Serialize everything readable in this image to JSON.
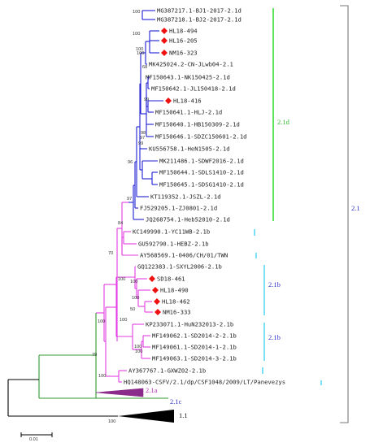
{
  "colors": {
    "clade_2_1d": "#1f1fd6",
    "clade_2_1b": "#e23ee2",
    "clade_2_1c": "#2f9a2f",
    "backbone": "#000000",
    "outgroup_2_1a": "#8a2a8a",
    "marker": "#ee1111",
    "bar_2_1d": "#33dd33",
    "bar_2_1b": "#22ccee",
    "bar_2_1": "#777777",
    "label_2_1d": "#33bb33",
    "label_blue": "#3333cc",
    "label_2_1a": "#bb33bb"
  },
  "marker_shape": "red-diamond",
  "taxa": [
    {
      "label": "MG387217.1-BJ1-2017-2.1d",
      "marked": false
    },
    {
      "label": "MG387218.1-BJ2-2017-2.1d",
      "marked": false
    },
    {
      "label": "HL18-494",
      "marked": true
    },
    {
      "label": "HL16-205",
      "marked": true
    },
    {
      "label": "NM16-323",
      "marked": true
    },
    {
      "label": "MK425024.2-CN-JLwb04-2.1",
      "marked": false
    },
    {
      "label": "MF150643.1-NK150425-2.1d",
      "marked": false
    },
    {
      "label": "MF150642.1-JL150418-2.1d",
      "marked": false
    },
    {
      "label": "HL18-416",
      "marked": true
    },
    {
      "label": "MF150641.1-HLJ-2.1d",
      "marked": false
    },
    {
      "label": "MF150640.1-HB150309-2.1d",
      "marked": false
    },
    {
      "label": "MF150646.1-SDZC150601-2.1d",
      "marked": false
    },
    {
      "label": "KU556758.1-HeN1505-2.1d",
      "marked": false
    },
    {
      "label": "MK211486.1-SDWF2016-2.1d",
      "marked": false
    },
    {
      "label": "MF150644.1-SDLS1410-2.1d",
      "marked": false
    },
    {
      "label": "MF150645.1-SDSG1410-2.1d",
      "marked": false
    },
    {
      "label": "KT119352.1-JSZL-2.1d",
      "marked": false
    },
    {
      "label": "FJ529205.1-ZJ0801-2.1d",
      "marked": false
    },
    {
      "label": "JQ268754.1-Heb52010-2.1d",
      "marked": false
    },
    {
      "label": "KC149990.1-YC11WB-2.1b",
      "marked": false
    },
    {
      "label": "GU592790.1-HEBZ-2.1b",
      "marked": false
    },
    {
      "label": "AY568569.1-0406/CH/01/TWN",
      "marked": false
    },
    {
      "label": "GQ122383.1-SXYL2006-2.1b",
      "marked": false
    },
    {
      "label": "SD18-461",
      "marked": true
    },
    {
      "label": "HL18-490",
      "marked": true
    },
    {
      "label": "HL18-462",
      "marked": true
    },
    {
      "label": "NM16-333",
      "marked": true
    },
    {
      "label": "KP233071.1-HuN232013-2.1b",
      "marked": false
    },
    {
      "label": "MF149062.1-SD2014-2-2.1b",
      "marked": false
    },
    {
      "label": "MF149061.1-SD2014-1-2.1b",
      "marked": false
    },
    {
      "label": "MF149063.1-SD2014-3-2.1b",
      "marked": false
    },
    {
      "label": "AY367767.1-GXWZ02-2.1b",
      "marked": false
    },
    {
      "label": "HQ148063-CSFV/2.1/dp/CSF1048/2009/LT/Panevezys",
      "marked": false
    }
  ],
  "bootstrap_values": [
    "100",
    "100",
    "100",
    "100",
    "68",
    "99",
    "98",
    "97",
    "99",
    "96",
    "97",
    "84",
    "70",
    "100",
    "100",
    "100",
    "50",
    "100",
    "100",
    "100",
    "100",
    "79",
    "100"
  ],
  "collapsed_groups": [
    {
      "label": "2.1a"
    },
    {
      "label": "2.1c"
    },
    {
      "label": "1.1",
      "bootstrap": "100"
    }
  ],
  "group_labels": {
    "g_2_1d": "2.1d",
    "g_2_1b": "2.1b",
    "g_2_1": "2.1"
  },
  "scale_bar": {
    "label": "0.01"
  }
}
